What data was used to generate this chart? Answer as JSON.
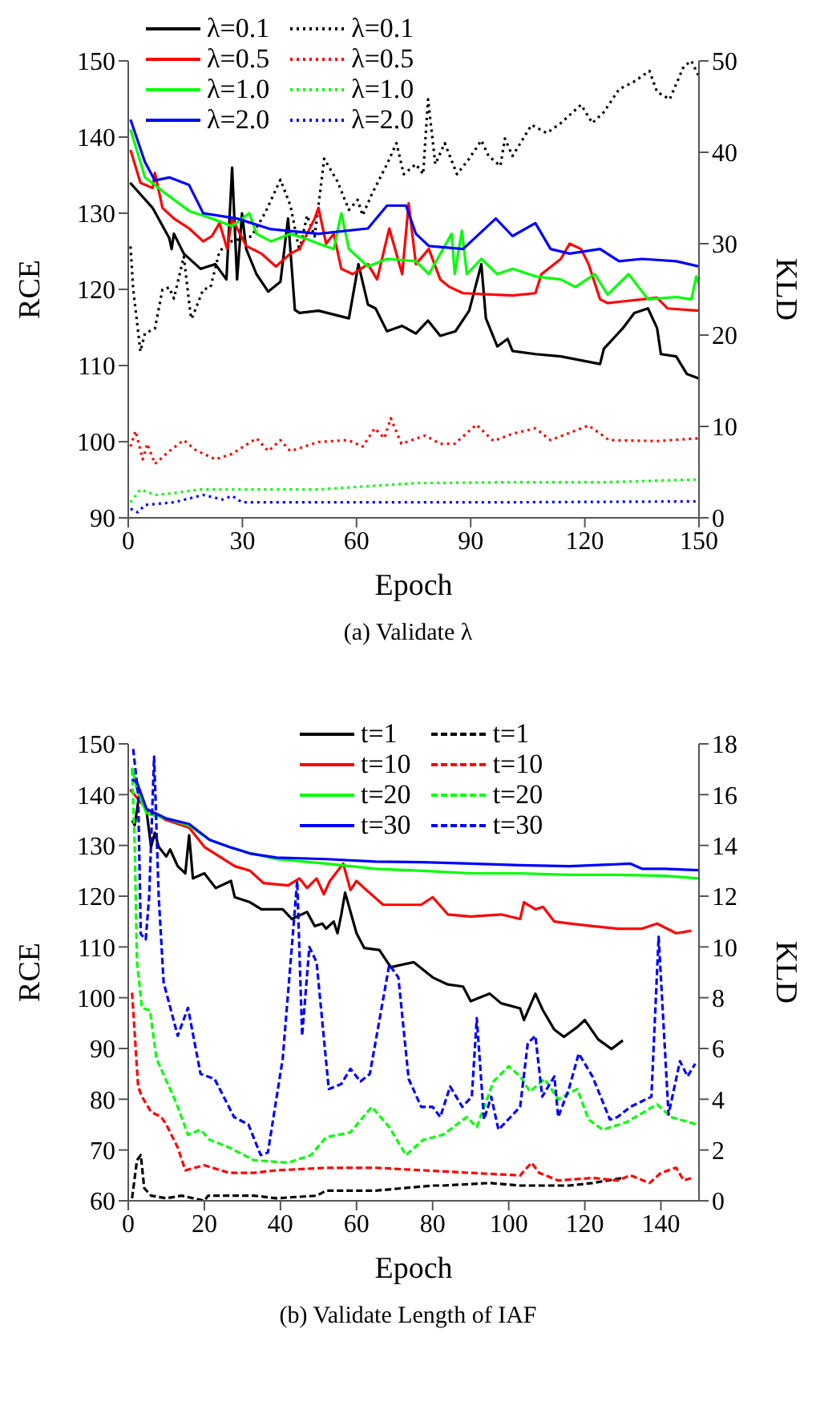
{
  "chart_data": [
    {
      "type": "line",
      "xlabel": "Epoch",
      "ylabel": "RCE",
      "y2label": "KLD",
      "annotations": [
        "(a) Validate λ"
      ],
      "xlim": [
        0,
        150
      ],
      "xticks": [
        0,
        30,
        60,
        90,
        120,
        150
      ],
      "ylim": [
        90,
        150
      ],
      "yticks": [
        90,
        100,
        110,
        120,
        130,
        140,
        150
      ],
      "y2lim": [
        0,
        50
      ],
      "y2ticks": [
        0,
        10,
        20,
        30,
        40,
        50
      ],
      "legend": "top left",
      "grid": false,
      "series": [
        {
          "name": "λ=0.1",
          "color": "#000000",
          "line_style": "solid",
          "x": [
            0.5,
            6.4,
            10.8,
            11.4,
            12,
            14.6,
            19,
            22.9,
            25.8,
            27.3,
            28.6,
            29.9,
            31,
            33.7,
            36.8,
            40,
            42,
            43.8,
            45,
            50,
            58,
            60.5,
            63,
            65,
            68,
            72,
            75.6,
            78.8,
            82,
            86,
            89.6,
            92.8,
            94,
            97,
            99.7,
            101,
            107,
            113.7,
            124,
            125,
            130,
            133,
            136.6,
            139,
            140,
            144,
            146.8,
            150
          ],
          "values": [
            134,
            130.7,
            126.7,
            125.3,
            127.3,
            124.7,
            122.7,
            123.3,
            121.3,
            136,
            121.3,
            130,
            125.3,
            122,
            119.7,
            121,
            129.3,
            117.3,
            116.9,
            117.2,
            116.2,
            123.3,
            118,
            117.5,
            114.5,
            115.2,
            114.2,
            115.9,
            113.9,
            114.5,
            117.2,
            123.3,
            116.2,
            112.5,
            113.5,
            111.9,
            111.5,
            111.2,
            110.2,
            112.2,
            114.9,
            116.9,
            117.5,
            114.9,
            111.5,
            111.2,
            108.9,
            108.3
          ]
        },
        {
          "name": "λ=0.1",
          "color": "#000000",
          "line_style": "dotted",
          "axis": "y2",
          "x": [
            0.6,
            1.3,
            3.2,
            4.4,
            7,
            9,
            10.8,
            12,
            14.6,
            16.5,
            17,
            19.7,
            21.6,
            24,
            27.3,
            32.4,
            36,
            40,
            42.6,
            45,
            47,
            49,
            51.5,
            55,
            58,
            60.3,
            61.6,
            64,
            68,
            70.5,
            72.4,
            75.6,
            77.5,
            78.8,
            80.7,
            83.2,
            86.4,
            89.6,
            92.8,
            94.7,
            97.8,
            99,
            101,
            106,
            110,
            113.7,
            119,
            122,
            125,
            129,
            132.8,
            137,
            139,
            142.3,
            146,
            148,
            150
          ],
          "values": [
            29.7,
            25,
            18.2,
            20.2,
            20.7,
            25,
            25.2,
            24,
            28.6,
            21.8,
            22.1,
            25,
            25.2,
            29.2,
            30.3,
            30.8,
            33.4,
            37,
            34.2,
            29.2,
            33.1,
            30.8,
            39.3,
            36.8,
            33.7,
            34.8,
            33.1,
            35.4,
            38.7,
            41,
            37.6,
            38.7,
            37.6,
            45.8,
            38.7,
            41,
            37.6,
            39.3,
            41.3,
            39.6,
            38.5,
            41.5,
            39.6,
            43,
            42.1,
            43.2,
            45.2,
            43.2,
            44.4,
            46.9,
            47.7,
            48.9,
            46.6,
            45.8,
            49.4,
            50,
            48.3
          ]
        },
        {
          "name": "λ=0.5",
          "color": "#ff0000",
          "line_style": "solid",
          "x": [
            0.6,
            3.2,
            6.4,
            7,
            9,
            12,
            16,
            19.7,
            22,
            24,
            26,
            27.3,
            31,
            35,
            38.8,
            42.6,
            45,
            49,
            50,
            52,
            54,
            56,
            59,
            63,
            65.4,
            68.6,
            72,
            73.7,
            75.6,
            79,
            82,
            84.5,
            88,
            101,
            107,
            108.6,
            113.7,
            116,
            119,
            121,
            124,
            126,
            131.5,
            139,
            141.7,
            150
          ],
          "values": [
            138.3,
            134,
            133.3,
            135.3,
            130.7,
            129.3,
            128,
            126.3,
            127,
            128.7,
            125.3,
            129.3,
            125.7,
            124.7,
            123,
            124.7,
            125.3,
            129.3,
            130.7,
            126,
            127.3,
            122.7,
            122,
            123.3,
            121.3,
            128,
            122,
            131.3,
            123.3,
            125.3,
            121.3,
            120.3,
            119.5,
            119.2,
            119.5,
            122,
            124,
            126,
            125.3,
            123.3,
            118.7,
            118.2,
            118.5,
            118.9,
            117.5,
            117.2
          ]
        },
        {
          "name": "λ=0.5",
          "color": "#ff0000",
          "line_style": "dotted",
          "axis": "y2",
          "x": [
            0.6,
            1.9,
            3.8,
            5,
            7,
            10.8,
            14.6,
            17.8,
            22.9,
            27.3,
            33.7,
            36.8,
            40,
            42.6,
            50,
            57.8,
            61.6,
            64.8,
            67.3,
            69,
            71.8,
            78,
            82,
            85.8,
            91.5,
            96,
            101,
            107,
            111,
            121,
            126.4,
            139,
            150
          ],
          "values": [
            7.8,
            9.5,
            6.4,
            8.1,
            5.9,
            7.3,
            8.5,
            7.4,
            6.4,
            7,
            8.7,
            7.3,
            8.5,
            7.3,
            8.3,
            8.5,
            7.8,
            9.8,
            8.7,
            10.9,
            8.1,
            9,
            8.1,
            8.1,
            10.2,
            8.4,
            9.2,
            9.8,
            8.5,
            10.1,
            8.5,
            8.4,
            8.7
          ]
        },
        {
          "name": "λ=1.0",
          "color": "#00ff00",
          "line_style": "solid",
          "x": [
            0.6,
            4.4,
            9.5,
            16,
            22,
            27.3,
            31.8,
            33.7,
            37.5,
            42.6,
            46.4,
            50,
            54,
            56,
            58,
            63,
            68,
            75.6,
            79,
            85,
            85.8,
            87.7,
            89,
            92.8,
            97,
            101,
            107,
            113.7,
            117.5,
            122.6,
            126,
            131.5,
            136.6,
            144,
            148,
            149.3,
            150
          ],
          "values": [
            141,
            134.7,
            132.7,
            130.3,
            129.3,
            128.3,
            130,
            127.3,
            126.3,
            127.3,
            126.7,
            126,
            125.3,
            130,
            125.3,
            123,
            124,
            123.7,
            122,
            127.3,
            122,
            127.7,
            122,
            124,
            122,
            122.7,
            121.7,
            121.3,
            120.3,
            122,
            119.3,
            122,
            118.7,
            119,
            118.7,
            121.7,
            120.7
          ]
        },
        {
          "name": "λ=1.0",
          "color": "#00ff00",
          "line_style": "dotted",
          "axis": "y2",
          "x": [
            0.6,
            3.2,
            7,
            12,
            18.4,
            27.3,
            50,
            75.6,
            101,
            126,
            150
          ],
          "values": [
            1.7,
            3.1,
            2.5,
            2.7,
            3.1,
            3.1,
            3.1,
            3.8,
            3.9,
            3.9,
            4.2
          ]
        },
        {
          "name": "λ=2.0",
          "color": "#0000ff",
          "line_style": "solid",
          "x": [
            0.6,
            4.4,
            7,
            10.8,
            16,
            19.7,
            28.6,
            37.5,
            50,
            63,
            68,
            73,
            75.6,
            79,
            88,
            96.6,
            101,
            107,
            111,
            116,
            124,
            129,
            135,
            144,
            150
          ],
          "values": [
            142.3,
            136.7,
            134.3,
            134.7,
            133.7,
            130,
            129.3,
            127.9,
            127.3,
            128,
            131,
            131,
            127.3,
            125.7,
            125.3,
            129.3,
            127,
            128.7,
            125.3,
            124.7,
            125.3,
            123.7,
            124,
            123.7,
            123
          ]
        },
        {
          "name": "λ=2.0",
          "color": "#0000ff",
          "line_style": "dotted",
          "axis": "y2",
          "x": [
            0.6,
            2.5,
            4.4,
            12,
            19.7,
            24.8,
            27.3,
            29.9,
            50,
            100,
            150
          ],
          "values": [
            1,
            0.6,
            1.4,
            1.7,
            2.5,
            2,
            2.4,
            1.7,
            1.7,
            1.7,
            1.8
          ]
        }
      ]
    },
    {
      "type": "line",
      "xlabel": "Epoch",
      "ylabel": "RCE",
      "y2label": "KLD",
      "annotations": [
        "(b) Validate Length of IAF"
      ],
      "xlim": [
        0,
        150
      ],
      "xticks": [
        0,
        20,
        40,
        60,
        80,
        100,
        120,
        140
      ],
      "ylim": [
        60,
        150
      ],
      "yticks": [
        60,
        70,
        80,
        90,
        100,
        110,
        120,
        130,
        140,
        150
      ],
      "y2lim": [
        0,
        18
      ],
      "y2ticks": [
        0,
        2,
        4,
        6,
        8,
        10,
        12,
        14,
        16,
        18
      ],
      "legend": "top",
      "grid": false,
      "series": [
        {
          "name": "t=1",
          "color": "#000000",
          "line_style": "solid",
          "x": [
            1,
            1.7,
            2.9,
            4.8,
            6,
            7,
            8,
            10,
            11,
            13,
            15,
            16,
            17,
            20,
            23,
            27,
            28,
            32,
            35,
            40.6,
            43,
            47,
            49,
            51,
            52,
            54,
            55,
            56,
            57,
            60,
            62,
            66,
            69,
            75,
            80,
            84,
            88,
            90,
            95,
            98,
            103,
            104,
            107,
            109,
            112,
            114.5,
            118,
            120,
            123.5,
            127,
            130
          ],
          "values": [
            134.9,
            134,
            140,
            136.8,
            129.7,
            132.5,
            129.7,
            127.8,
            129.2,
            125.9,
            124.5,
            132,
            123.5,
            124.5,
            121.6,
            123,
            119.8,
            118.8,
            117.4,
            117.4,
            115.5,
            116.9,
            114.1,
            114.6,
            113.6,
            115,
            112.7,
            116.4,
            120.7,
            112.7,
            109.8,
            109.4,
            106,
            107,
            104,
            102.6,
            102.2,
            99.3,
            100.8,
            98.9,
            97.9,
            95.6,
            100.8,
            97.5,
            93.7,
            92.3,
            94.2,
            95.6,
            91.8,
            89.9,
            91.6
          ]
        },
        {
          "name": "t=1",
          "color": "#000000",
          "line_style": "dashed",
          "axis": "y2",
          "x": [
            1,
            2.3,
            3.3,
            4.2,
            6,
            10,
            14,
            20,
            21,
            33,
            39,
            49.5,
            52,
            65,
            72.5,
            80,
            82.7,
            95,
            103,
            110.7,
            116,
            122,
            130
          ],
          "values": [
            0.1,
            1.6,
            1.8,
            0.5,
            0.2,
            0.1,
            0.2,
            0,
            0.2,
            0.2,
            0.1,
            0.2,
            0.4,
            0.4,
            0.5,
            0.6,
            0.6,
            0.7,
            0.6,
            0.6,
            0.6,
            0.7,
            0.9
          ]
        },
        {
          "name": "t=10",
          "color": "#ff0000",
          "line_style": "solid",
          "x": [
            0.5,
            5,
            10,
            16,
            20,
            24,
            28,
            32,
            35.5,
            42,
            45,
            47,
            49.5,
            51.4,
            53,
            56.5,
            58.4,
            60,
            62,
            67,
            72.5,
            77,
            80,
            84,
            90,
            98,
            103,
            104,
            107,
            109,
            112,
            116,
            122,
            128.6,
            135,
            139,
            144,
            148
          ],
          "values": [
            141,
            137,
            135,
            133.5,
            129.7,
            127.8,
            125.9,
            125,
            122.6,
            122.1,
            123.5,
            121.6,
            123.5,
            120.4,
            123,
            126.4,
            121.2,
            123,
            121.6,
            118.3,
            118.3,
            118.3,
            119.8,
            116.4,
            116,
            116.4,
            115.5,
            118.8,
            117.4,
            117.9,
            115,
            114.6,
            114.1,
            113.6,
            113.6,
            114.6,
            112.7,
            113.2
          ]
        },
        {
          "name": "t=10",
          "color": "#ff0000",
          "line_style": "dashed",
          "axis": "y2",
          "x": [
            1,
            2.6,
            3.6,
            6,
            8.7,
            10,
            13,
            15,
            20,
            26.5,
            33,
            39,
            52,
            65,
            77.5,
            90,
            103,
            106,
            108,
            113,
            122,
            128.6,
            132,
            137,
            140,
            144,
            146,
            148
          ],
          "values": [
            8.2,
            4.5,
            4.1,
            3.5,
            3.3,
            3,
            2.1,
            1.2,
            1.4,
            1.1,
            1.1,
            1.2,
            1.3,
            1.3,
            1.2,
            1.1,
            1,
            1.5,
            1.1,
            0.8,
            0.9,
            0.8,
            1,
            0.7,
            1.1,
            1.3,
            0.8,
            0.9
          ]
        },
        {
          "name": "t=20",
          "color": "#00ff00",
          "line_style": "solid",
          "x": [
            1,
            2.3,
            4.8,
            10,
            16,
            21.4,
            26.5,
            32,
            39,
            52,
            65,
            77.5,
            90,
            103,
            116,
            128.6,
            141,
            150
          ],
          "values": [
            145.3,
            141,
            136.3,
            135.3,
            133.9,
            131.1,
            129.7,
            128.5,
            127.3,
            126.4,
            125.4,
            125,
            124.5,
            124.5,
            124.2,
            124.2,
            124,
            123.5
          ]
        },
        {
          "name": "t=20",
          "color": "#00ff00",
          "line_style": "dashed",
          "axis": "y2",
          "x": [
            1,
            1.7,
            2.3,
            3.6,
            5.7,
            7.4,
            12.5,
            15.7,
            19,
            21.4,
            26.5,
            33,
            42,
            48,
            52,
            58.4,
            64,
            68.6,
            73,
            77.5,
            82.7,
            89,
            91.6,
            96,
            100,
            103,
            105.6,
            109.4,
            113,
            118,
            121,
            124.7,
            131,
            139,
            142.6,
            149.6
          ],
          "values": [
            17,
            14,
            9.4,
            7.6,
            7.5,
            5.6,
            3.9,
            2.6,
            2.8,
            2.4,
            2.1,
            1.6,
            1.5,
            1.8,
            2.5,
            2.7,
            3.7,
            2.9,
            1.8,
            2.4,
            2.6,
            3.3,
            2.9,
            4.7,
            5.3,
            4.9,
            4.3,
            4.8,
            4,
            4.4,
            3.2,
            2.8,
            3.1,
            3.8,
            3.3,
            3
          ]
        },
        {
          "name": "t=30",
          "color": "#0000ff",
          "line_style": "solid",
          "x": [
            1,
            2.3,
            4.8,
            10,
            16,
            21.4,
            26.5,
            32,
            39,
            52,
            65,
            77.5,
            90,
            103,
            116,
            132,
            135,
            141,
            150
          ],
          "values": [
            143,
            142.4,
            137.2,
            135.3,
            134.2,
            131.1,
            129.7,
            128.4,
            127.6,
            127.3,
            126.8,
            126.7,
            126.4,
            126.1,
            125.9,
            126.4,
            125.4,
            125.4,
            125.1
          ]
        },
        {
          "name": "t=30",
          "color": "#0000ff",
          "line_style": "dashed",
          "axis": "y2",
          "x": [
            1.3,
            2.6,
            3.3,
            4.6,
            5.5,
            6.8,
            8,
            9.3,
            13,
            15.7,
            19,
            22.7,
            27.8,
            31.6,
            34.8,
            36.7,
            40.6,
            44.4,
            45.7,
            47.6,
            49.5,
            52.7,
            56,
            58.4,
            61,
            63.5,
            66,
            68.6,
            71,
            73.7,
            77,
            80,
            82,
            84.6,
            87.8,
            90.3,
            91.6,
            93.5,
            95.4,
            97.3,
            100.5,
            103,
            105,
            107,
            108.8,
            112,
            113,
            115.8,
            118.4,
            122,
            126.6,
            128.6,
            132,
            137.5,
            139.4,
            142,
            145,
            147,
            149
          ],
          "values": [
            17.8,
            16,
            10.5,
            10.3,
            12,
            17.5,
            12,
            8.6,
            6.5,
            7.6,
            5,
            4.8,
            3.3,
            3,
            1.8,
            1.9,
            5.6,
            12.6,
            6.5,
            10,
            9.4,
            4.4,
            4.6,
            5.2,
            4.7,
            5,
            7.1,
            9.3,
            8.8,
            4.8,
            3.7,
            3.7,
            3.3,
            4.5,
            3.7,
            4.1,
            7.2,
            3.2,
            4.1,
            2.8,
            3.3,
            3.7,
            6.2,
            6.5,
            4.1,
            4.9,
            3.3,
            4.4,
            5.8,
            4.9,
            3.2,
            3.3,
            3.7,
            4.1,
            10.4,
            3.4,
            5.5,
            4.9,
            5.4
          ]
        }
      ]
    }
  ]
}
